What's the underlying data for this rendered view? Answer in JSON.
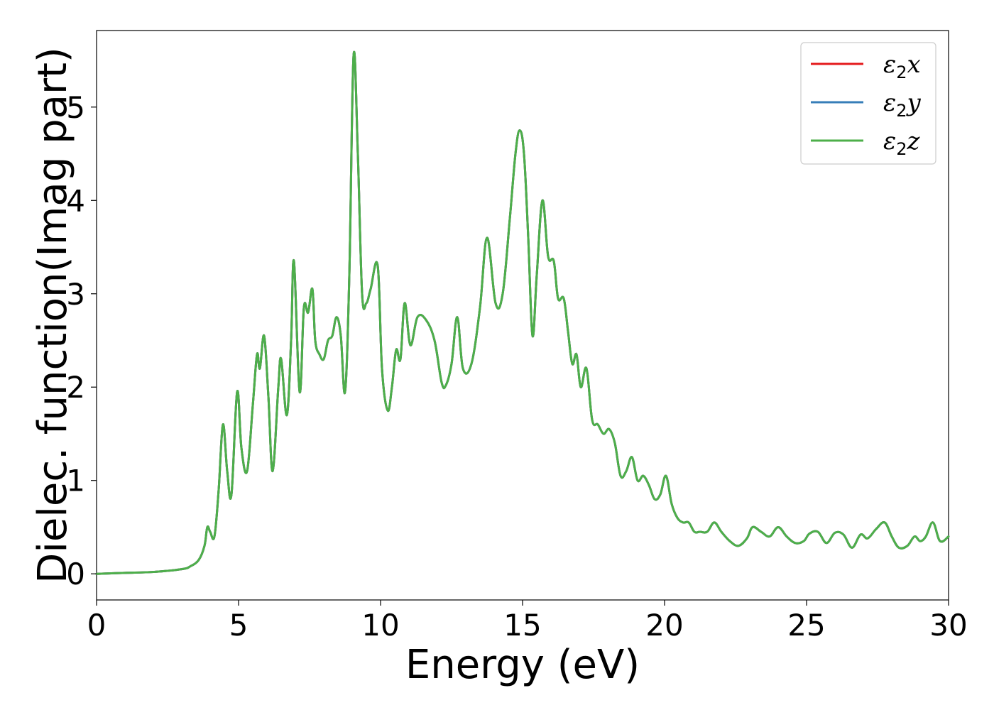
{
  "chart_data": {
    "type": "line",
    "xlabel": "Energy (eV)",
    "ylabel": "Dielec. function(Imag part)",
    "xlim": [
      0,
      30
    ],
    "ylim": [
      -0.28,
      5.82
    ],
    "xticks": [
      0,
      5,
      10,
      15,
      20,
      25,
      30
    ],
    "yticks": [
      0,
      1,
      2,
      3,
      4,
      5
    ],
    "grid": false,
    "legend_position": "top-right",
    "colors": {
      "e2x": "#e41a1c",
      "e2y": "#377eb8",
      "e2z": "#4daf4a"
    },
    "series": [
      {
        "key": "e2x",
        "name": "ε2x",
        "base": "ε",
        "sub": "2",
        "comp": "x"
      },
      {
        "key": "e2y",
        "name": "ε2y",
        "base": "ε",
        "sub": "2",
        "comp": "y"
      },
      {
        "key": "e2z",
        "name": "ε2z",
        "base": "ε",
        "sub": "2",
        "comp": "z"
      }
    ],
    "x": [
      0,
      1,
      2,
      3,
      3.3,
      3.6,
      3.8,
      3.9,
      4.0,
      4.15,
      4.3,
      4.45,
      4.6,
      4.75,
      4.95,
      5.1,
      5.3,
      5.5,
      5.65,
      5.75,
      5.9,
      6.05,
      6.2,
      6.4,
      6.5,
      6.7,
      6.85,
      6.95,
      7.15,
      7.3,
      7.45,
      7.6,
      7.7,
      7.85,
      8.0,
      8.15,
      8.3,
      8.45,
      8.6,
      8.75,
      8.9,
      9.05,
      9.2,
      9.35,
      9.5,
      9.65,
      9.9,
      10.05,
      10.25,
      10.4,
      10.55,
      10.7,
      10.85,
      11.05,
      11.3,
      11.6,
      11.9,
      12.15,
      12.3,
      12.5,
      12.7,
      12.9,
      13.2,
      13.5,
      13.75,
      14.05,
      14.3,
      14.55,
      14.75,
      14.9,
      15.05,
      15.2,
      15.35,
      15.5,
      15.7,
      15.9,
      16.1,
      16.25,
      16.45,
      16.6,
      16.75,
      16.9,
      17.05,
      17.25,
      17.45,
      17.65,
      17.85,
      18.05,
      18.25,
      18.45,
      18.65,
      18.85,
      19.05,
      19.25,
      19.45,
      19.65,
      19.85,
      20.05,
      20.25,
      20.45,
      20.65,
      20.85,
      21.05,
      21.25,
      21.5,
      21.75,
      22.0,
      22.3,
      22.6,
      22.9,
      23.1,
      23.4,
      23.7,
      24.0,
      24.3,
      24.6,
      24.9,
      25.1,
      25.4,
      25.7,
      26.0,
      26.3,
      26.6,
      26.9,
      27.15,
      27.45,
      27.75,
      28.0,
      28.25,
      28.55,
      28.8,
      29.0,
      29.2,
      29.45,
      29.7,
      30.0
    ],
    "y": [
      0.0,
      0.01,
      0.02,
      0.05,
      0.08,
      0.15,
      0.3,
      0.5,
      0.45,
      0.4,
      0.9,
      1.6,
      1.1,
      0.85,
      1.95,
      1.35,
      1.1,
      1.8,
      2.35,
      2.2,
      2.55,
      1.9,
      1.1,
      2.0,
      2.3,
      1.7,
      2.5,
      3.35,
      1.95,
      2.85,
      2.8,
      3.05,
      2.5,
      2.35,
      2.3,
      2.5,
      2.55,
      2.75,
      2.55,
      1.95,
      3.2,
      5.55,
      4.5,
      3.0,
      2.9,
      3.05,
      3.3,
      2.2,
      1.75,
      2.0,
      2.4,
      2.3,
      2.9,
      2.45,
      2.75,
      2.72,
      2.5,
      2.05,
      2.02,
      2.25,
      2.75,
      2.2,
      2.25,
      2.85,
      3.6,
      2.9,
      3.0,
      3.8,
      4.5,
      4.75,
      4.5,
      3.6,
      2.55,
      3.2,
      4.0,
      3.4,
      3.35,
      2.95,
      2.95,
      2.6,
      2.25,
      2.35,
      2.0,
      2.2,
      1.65,
      1.6,
      1.5,
      1.55,
      1.4,
      1.05,
      1.1,
      1.25,
      1.0,
      1.05,
      0.95,
      0.8,
      0.85,
      1.05,
      0.75,
      0.6,
      0.55,
      0.55,
      0.45,
      0.45,
      0.45,
      0.55,
      0.45,
      0.35,
      0.3,
      0.38,
      0.5,
      0.45,
      0.4,
      0.5,
      0.4,
      0.33,
      0.35,
      0.43,
      0.45,
      0.33,
      0.44,
      0.42,
      0.28,
      0.42,
      0.38,
      0.48,
      0.55,
      0.4,
      0.28,
      0.3,
      0.4,
      0.35,
      0.4,
      0.55,
      0.35,
      0.4
    ]
  }
}
